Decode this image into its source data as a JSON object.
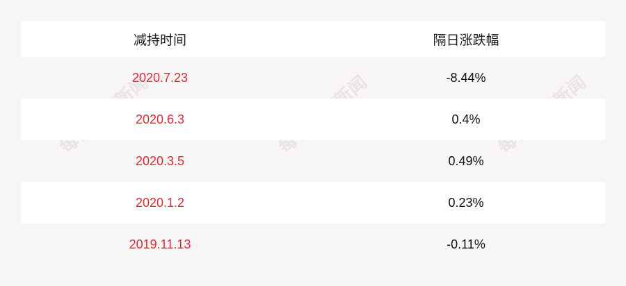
{
  "watermark": "每日经济新闻",
  "table": {
    "headers": [
      "减持时间",
      "隔日涨跌幅"
    ],
    "rows": [
      {
        "date": "2020.7.23",
        "change": "-8.44%"
      },
      {
        "date": "2020.6.3",
        "change": "0.4%"
      },
      {
        "date": "2020.3.5",
        "change": "0.49%"
      },
      {
        "date": "2020.1.2",
        "change": "0.23%"
      },
      {
        "date": "2019.11.13",
        "change": "-0.11%"
      }
    ]
  },
  "colors": {
    "date_text": "#dc2b36",
    "background": "#f8f5f6",
    "row_alt": "#ffffff"
  }
}
